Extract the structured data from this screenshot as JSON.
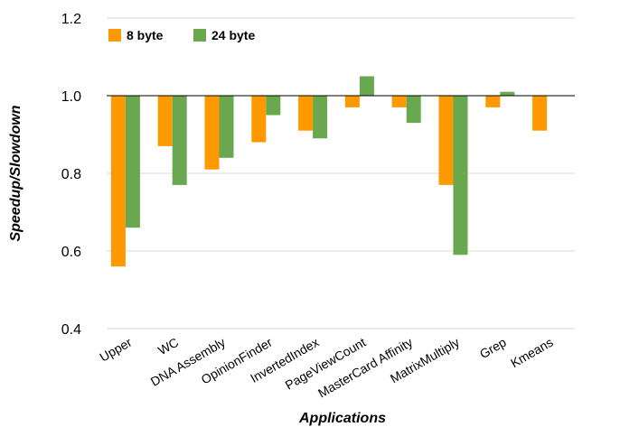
{
  "chart_data": {
    "type": "bar",
    "title": "",
    "xlabel": "Applications",
    "ylabel": "Speedup/Slowdown",
    "ylim": [
      0.4,
      1.2
    ],
    "yticks": [
      "0.4",
      "0.6",
      "0.8",
      "1.0",
      "1.2"
    ],
    "baseline": 1.0,
    "grid": true,
    "legend": "top-left",
    "categories": [
      "Upper",
      "WC",
      "DNA Assembly",
      "OpinionFinder",
      "InvertedIndex",
      "PageViewCount",
      "MasterCard Affinity",
      "MatrixMultiply",
      "Grep",
      "Kmeans"
    ],
    "series": [
      {
        "name": "8 byte",
        "color": "#ff9900",
        "values": [
          0.56,
          0.87,
          0.81,
          0.88,
          0.91,
          0.97,
          0.97,
          0.77,
          0.97,
          0.91
        ]
      },
      {
        "name": "24 byte",
        "color": "#6aa84f",
        "values": [
          0.66,
          0.77,
          0.84,
          0.95,
          0.89,
          1.05,
          0.93,
          0.59,
          1.01,
          null
        ]
      }
    ]
  }
}
